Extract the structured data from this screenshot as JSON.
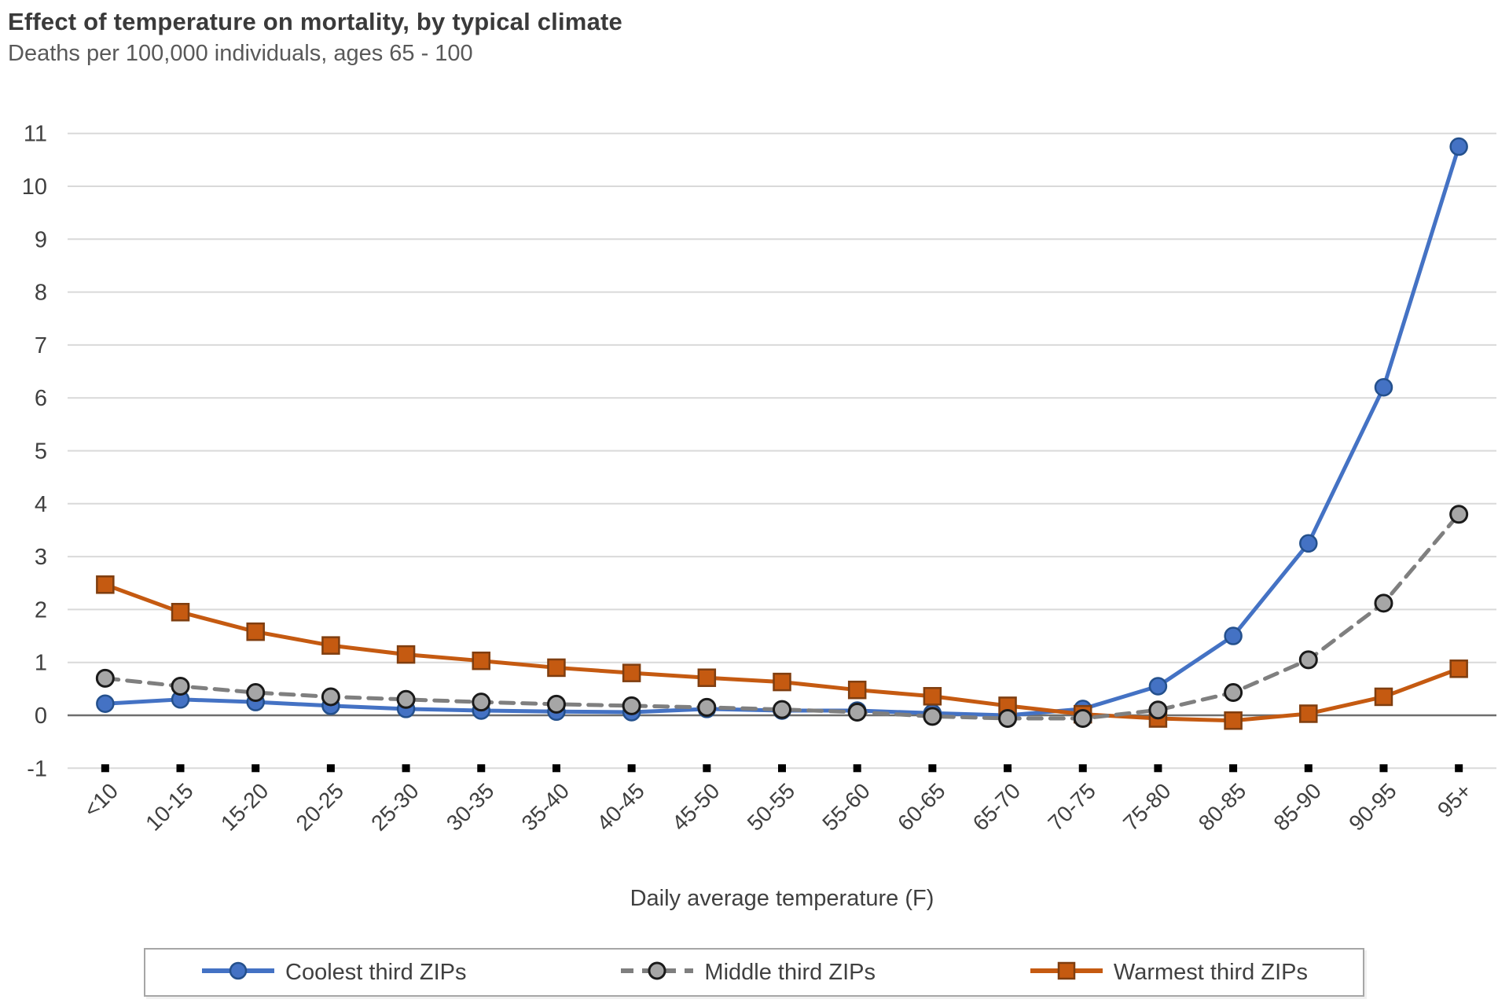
{
  "header": {
    "title": "Effect of temperature on mortality, by typical climate",
    "subtitle": "Deaths per 100,000 individuals, ages 65 - 100"
  },
  "chart_data": {
    "type": "line",
    "title": "Effect of temperature on mortality, by typical climate",
    "subtitle": "Deaths per 100,000 individuals, ages 65 - 100",
    "xlabel": "Daily average temperature (F)",
    "ylabel": "Deaths per 100,000 individuals",
    "ylim": [
      -1,
      11
    ],
    "ytick_step": 1,
    "grid": "horizontal",
    "legend_position": "bottom",
    "categories": [
      "<10",
      "10-15",
      "15-20",
      "20-25",
      "25-30",
      "30-35",
      "35-40",
      "40-45",
      "45-50",
      "50-55",
      "55-60",
      "60-65",
      "65-70",
      "70-75",
      "75-80",
      "80-85",
      "85-90",
      "90-95",
      "95+"
    ],
    "series": [
      {
        "name": "Coolest third ZIPs",
        "line": "solid",
        "marker": "circle",
        "color": "#4472C4",
        "marker_fill": "#4472C4",
        "marker_stroke": "#24508C",
        "values": [
          0.22,
          0.3,
          0.25,
          0.18,
          0.12,
          0.09,
          0.07,
          0.06,
          0.12,
          0.09,
          0.09,
          0.04,
          0.0,
          0.12,
          0.55,
          1.5,
          3.25,
          6.2,
          10.75
        ]
      },
      {
        "name": "Middle third ZIPs",
        "line": "dashed",
        "marker": "circle",
        "color": "#7F7F7F",
        "marker_fill": "#A6A6A6",
        "marker_stroke": "#1A1A1A",
        "values": [
          0.7,
          0.55,
          0.43,
          0.35,
          0.3,
          0.25,
          0.21,
          0.18,
          0.15,
          0.11,
          0.06,
          -0.02,
          -0.06,
          -0.06,
          0.1,
          0.43,
          1.05,
          2.12,
          3.8
        ]
      },
      {
        "name": "Warmest third ZIPs",
        "line": "solid",
        "marker": "square",
        "color": "#C55A11",
        "marker_fill": "#C55A11",
        "marker_stroke": "#7F3E10",
        "values": [
          2.47,
          1.95,
          1.58,
          1.32,
          1.15,
          1.03,
          0.9,
          0.8,
          0.71,
          0.63,
          0.48,
          0.36,
          0.18,
          0.02,
          -0.06,
          -0.1,
          0.03,
          0.35,
          0.88
        ]
      }
    ]
  },
  "colors": {
    "gridline": "#D9D9D9",
    "zero_axis": "#6E6E6E",
    "tick_mark": "#000000",
    "axis_text": "#404040",
    "title_text": "#3A3A3A",
    "subtitle_text": "#595959"
  }
}
